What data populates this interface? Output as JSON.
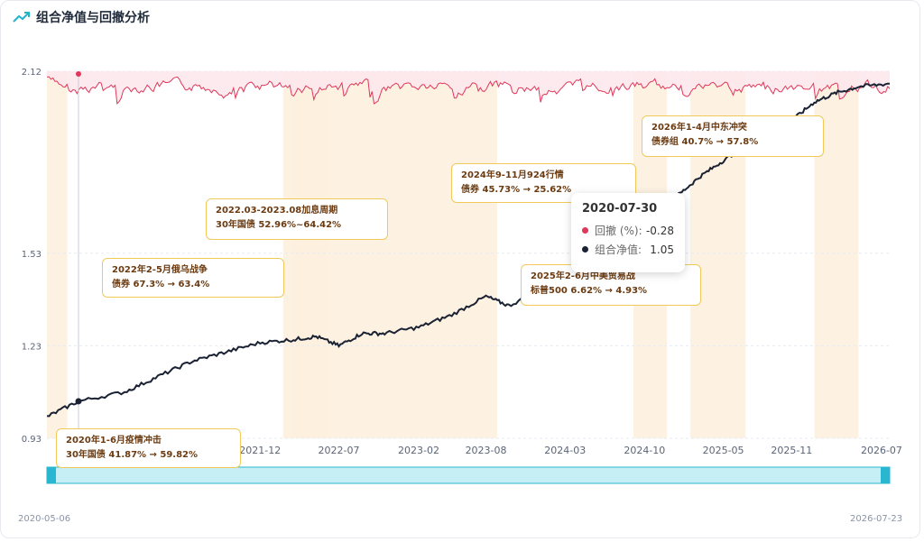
{
  "header": {
    "title": "组合净值与回撤分析",
    "icon": "trend-up-icon"
  },
  "colors": {
    "nav_line": "#1a2233",
    "drawdown_line": "#e0375a",
    "drawdown_fill": "#fde8ec",
    "event_band": "#fdf0dd",
    "slider": "#c6eef5",
    "slider_border": "#29b6d0",
    "callout_border": "#f0c95a"
  },
  "chart_data": {
    "type": "line",
    "y_ticks": [
      "2.12",
      "1.53",
      "1.23",
      "0.93"
    ],
    "ylim": [
      0.93,
      2.12
    ],
    "x_ticks": [
      "2021-05",
      "2021-12",
      "2022-07",
      "2023-02",
      "2023-08",
      "2024-03",
      "2024-10",
      "2025-05",
      "2025-11",
      "2026-07"
    ],
    "x_range": [
      "2020-05-06",
      "2026-07-23"
    ],
    "series": [
      {
        "name": "组合净值",
        "points": [
          [
            "2020-05-06",
            1.0
          ],
          [
            "2020-07-30",
            1.05
          ],
          [
            "2020-12-01",
            1.08
          ],
          [
            "2021-03-01",
            1.13
          ],
          [
            "2021-06-01",
            1.18
          ],
          [
            "2021-09-01",
            1.21
          ],
          [
            "2021-12-01",
            1.24
          ],
          [
            "2022-03-01",
            1.25
          ],
          [
            "2022-05-01",
            1.26
          ],
          [
            "2022-07-01",
            1.23
          ],
          [
            "2022-09-01",
            1.27
          ],
          [
            "2022-11-01",
            1.27
          ],
          [
            "2023-02-01",
            1.29
          ],
          [
            "2023-05-01",
            1.33
          ],
          [
            "2023-08-01",
            1.39
          ],
          [
            "2023-10-01",
            1.36
          ],
          [
            "2024-01-01",
            1.41
          ],
          [
            "2024-03-01",
            1.48
          ],
          [
            "2024-06-01",
            1.55
          ],
          [
            "2024-09-01",
            1.6
          ],
          [
            "2024-11-01",
            1.66
          ],
          [
            "2025-01-01",
            1.72
          ],
          [
            "2025-03-01",
            1.78
          ],
          [
            "2025-05-01",
            1.83
          ],
          [
            "2025-07-01",
            1.88
          ],
          [
            "2025-09-01",
            1.92
          ],
          [
            "2025-11-01",
            1.96
          ],
          [
            "2026-01-01",
            2.02
          ],
          [
            "2026-03-01",
            2.05
          ],
          [
            "2026-05-01",
            2.07
          ],
          [
            "2026-07-23",
            2.08
          ]
        ]
      },
      {
        "name": "回撤 (%)"
      }
    ],
    "events": [
      {
        "label": "2020年1-6月疫情冲击",
        "detail": "30年国债 41.87% → 59.82%",
        "start": "2020-05-06",
        "end": "2020-06-30"
      },
      {
        "label": "2022年2-5月俄乌战争",
        "detail": "债券 67.3% → 63.4%",
        "start": "2022-02-01",
        "end": "2022-05-31"
      },
      {
        "label": "2022.03-2023.08加息周期",
        "detail": "30年国债 52.96%~64.42%",
        "start": "2022-03-01",
        "end": "2023-08-31"
      },
      {
        "label": "2024年9-11月924行情",
        "detail": "债券 45.73% → 25.62%",
        "start": "2024-09-01",
        "end": "2024-11-30"
      },
      {
        "label": "2025年2-6月中美贸易战",
        "detail": "标普500 6.62% → 4.93%",
        "start": "2025-02-01",
        "end": "2025-06-30"
      },
      {
        "label": "2026年1-4月中东冲突",
        "detail": "债券组 40.7% → 57.8%",
        "start": "2026-01-01",
        "end": "2026-04-30"
      }
    ]
  },
  "tooltip": {
    "date": "2020-07-30",
    "rows": [
      {
        "label": "回撤 (%):",
        "value": "-0.28",
        "color": "#e0375a"
      },
      {
        "label": "组合净值:",
        "value": "1.05",
        "color": "#1a2233"
      }
    ]
  },
  "slider": {
    "start_label": "2020-05-06",
    "end_label": "2026-07-23"
  }
}
